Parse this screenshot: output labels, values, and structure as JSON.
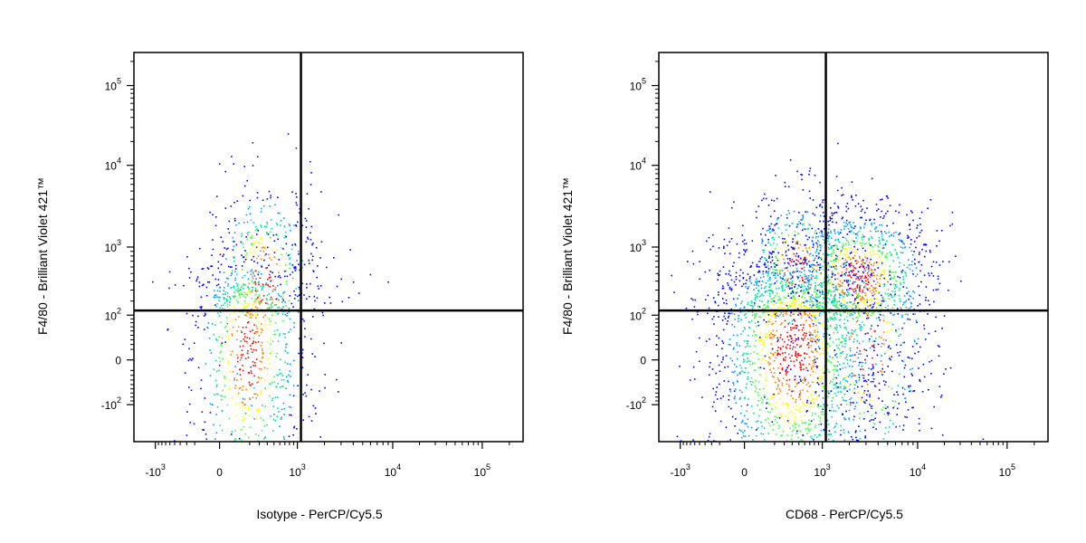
{
  "chart_data": [
    {
      "type": "scatter",
      "title": "",
      "xlabel": "Isotype - PerCP/Cy5.5",
      "ylabel": "F4/80 - Brilliant Violet 421™",
      "x_scale": "biexponential",
      "y_scale": "biexponential",
      "xlim": [
        -2000,
        200000
      ],
      "ylim": [
        -200,
        250000
      ],
      "x_ticks": [
        {
          "base": "-10",
          "exp": "3"
        },
        {
          "base": "0",
          "exp": ""
        },
        {
          "base": "10",
          "exp": "3"
        },
        {
          "base": "10",
          "exp": "4"
        },
        {
          "base": "10",
          "exp": "5"
        }
      ],
      "y_ticks": [
        {
          "base": "-10",
          "exp": "2"
        },
        {
          "base": "0",
          "exp": ""
        },
        {
          "base": "10",
          "exp": "2"
        },
        {
          "base": "10",
          "exp": "3"
        },
        {
          "base": "10",
          "exp": "4"
        },
        {
          "base": "10",
          "exp": "5"
        }
      ],
      "quadrant_gate": {
        "x": 1100,
        "y": 130
      },
      "populations": [
        {
          "center": [
            180,
            15
          ],
          "spread": [
            0.9,
            1.1
          ],
          "count": 900
        },
        {
          "center": [
            350,
            400
          ],
          "spread": [
            0.8,
            1.6
          ],
          "count": 420
        },
        {
          "center": [
            1500,
            600
          ],
          "spread": [
            0.7,
            0.9
          ],
          "count": 40
        }
      ]
    },
    {
      "type": "scatter",
      "title": "",
      "xlabel": "CD68 - PerCP/Cy5.5",
      "ylabel": "F4/80 - Brilliant Violet 421™",
      "x_scale": "biexponential",
      "y_scale": "biexponential",
      "xlim": [
        -2000,
        200000
      ],
      "ylim": [
        -200,
        250000
      ],
      "x_ticks": [
        {
          "base": "-10",
          "exp": "3"
        },
        {
          "base": "0",
          "exp": ""
        },
        {
          "base": "10",
          "exp": "3"
        },
        {
          "base": "10",
          "exp": "4"
        },
        {
          "base": "10",
          "exp": "5"
        }
      ],
      "y_ticks": [
        {
          "base": "-10",
          "exp": "2"
        },
        {
          "base": "0",
          "exp": ""
        },
        {
          "base": "10",
          "exp": "2"
        },
        {
          "base": "10",
          "exp": "3"
        },
        {
          "base": "10",
          "exp": "4"
        },
        {
          "base": "10",
          "exp": "5"
        }
      ],
      "quadrant_gate": {
        "x": 1100,
        "y": 130
      },
      "populations": [
        {
          "center": [
            400,
            20
          ],
          "spread": [
            1.3,
            1.1
          ],
          "count": 2200
        },
        {
          "center": [
            2500,
            450
          ],
          "spread": [
            1.1,
            1.1
          ],
          "count": 1100
        },
        {
          "center": [
            500,
            600
          ],
          "spread": [
            0.9,
            1.2
          ],
          "count": 350
        },
        {
          "center": [
            3000,
            30
          ],
          "spread": [
            1.0,
            1.0
          ],
          "count": 350
        }
      ]
    }
  ],
  "density_colors": [
    "#0000ff",
    "#00a0ff",
    "#00e0a0",
    "#40ff40",
    "#ffff00",
    "#ff8000",
    "#ff0000"
  ],
  "gate_color": "#000000"
}
